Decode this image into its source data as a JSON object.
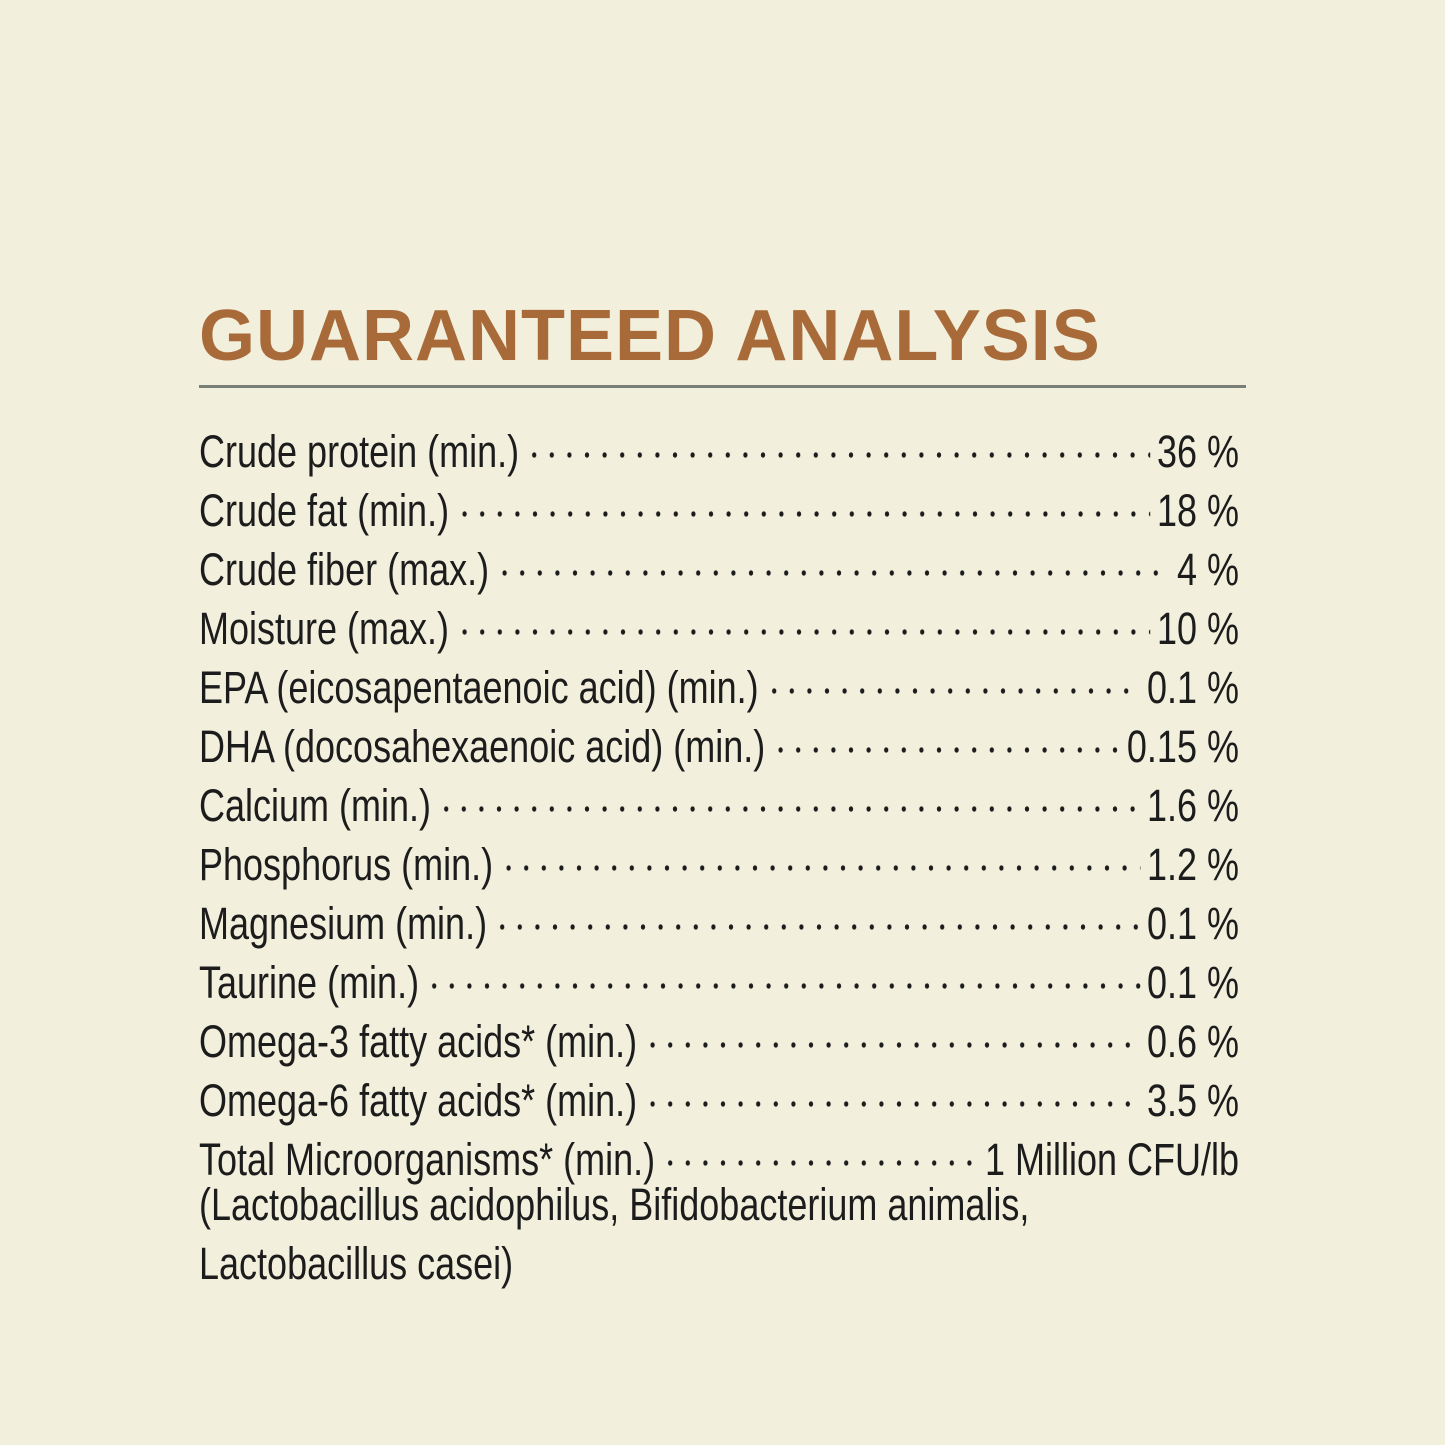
{
  "title": "GUARANTEED ANALYSIS",
  "colors": {
    "background": "#f2efdc",
    "title": "#a86a38",
    "rule": "#7a7f78",
    "text": "#1c1c1c"
  },
  "rows": [
    {
      "label": "Crude protein (min.)",
      "value": "36 %"
    },
    {
      "label": "Crude fat (min.)",
      "value": "18 %"
    },
    {
      "label": "Crude fiber (max.)",
      "value": "4 %"
    },
    {
      "label": "Moisture (max.)",
      "value": "10 %"
    },
    {
      "label": "EPA (eicosapentaenoic acid) (min.)",
      "value": "0.1 %"
    },
    {
      "label": "DHA (docosahexaenoic acid) (min.)",
      "value": "0.15 %"
    },
    {
      "label": "Calcium (min.)",
      "value": "1.6 %"
    },
    {
      "label": "Phosphorus (min.)",
      "value": "1.2 %"
    },
    {
      "label": "Magnesium (min.)",
      "value": "0.1 %"
    },
    {
      "label": "Taurine (min.)",
      "value": "0.1 %"
    },
    {
      "label": "Omega-3 fatty acids* (min.)",
      "value": "0.6 %"
    },
    {
      "label": "Omega-6 fatty acids* (min.)",
      "value": "3.5 %"
    },
    {
      "label": "Total Microorganisms* (min.)",
      "value": "1 Million CFU/lb"
    }
  ],
  "note_lines": [
    "(Lactobacillus acidophilus, Bifidobacterium animalis,",
    "Lactobacillus casei)"
  ]
}
